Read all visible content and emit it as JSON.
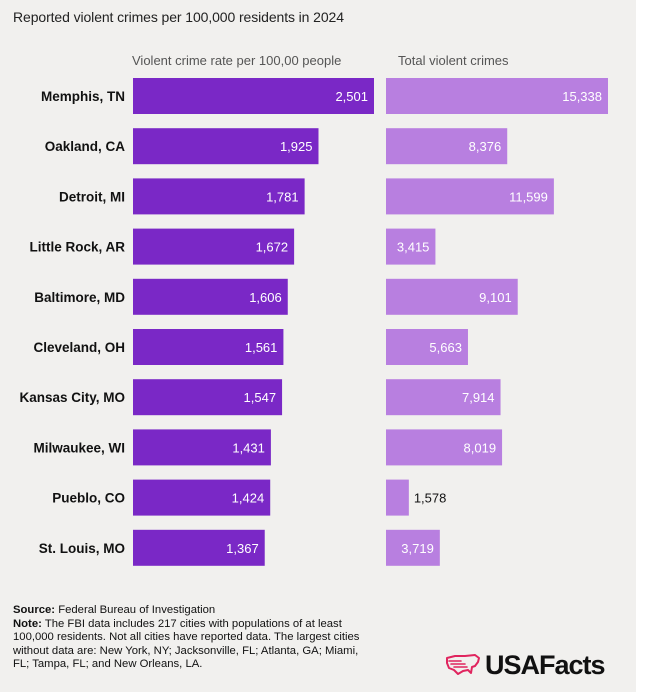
{
  "chart_data": {
    "type": "bar",
    "title": "Reported violent crimes per 100,000 residents in 2024",
    "categories": [
      "Memphis, TN",
      "Oakland, CA",
      "Detroit, MI",
      "Little Rock, AR",
      "Baltimore, MD",
      "Cleveland, OH",
      "Kansas City, MO",
      "Milwaukee, WI",
      "Pueblo, CO",
      "St. Louis, MO"
    ],
    "series": [
      {
        "name": "Violent crime rate per 100,00 people",
        "values": [
          2501,
          1925,
          1781,
          1672,
          1606,
          1561,
          1547,
          1431,
          1424,
          1367
        ],
        "labels": [
          "2,501",
          "1,925",
          "1,781",
          "1,672",
          "1,606",
          "1,561",
          "1,547",
          "1,431",
          "1,424",
          "1,367"
        ],
        "color": "#7a28c6"
      },
      {
        "name": "Total violent crimes",
        "values": [
          15338,
          8376,
          11599,
          3415,
          9101,
          5663,
          7914,
          8019,
          1578,
          3719
        ],
        "labels": [
          "15,338",
          "8,376",
          "11,599",
          "3,415",
          "9,101",
          "5,663",
          "7,914",
          "8,019",
          "1,578",
          "3,719"
        ],
        "color": "#b87fe0"
      }
    ]
  },
  "footer": {
    "source_label": "Source:",
    "source_text": "Federal Bureau of Investigation",
    "note_label": "Note:",
    "note_text": "The FBI data includes 217 cities with populations of at least 100,000 residents. Not all cities have reported data. The largest cities without data are: New York, NY; Jacksonville, FL; Atlanta, GA; Miami, FL; Tampa, FL; and New Orleans, LA."
  },
  "logo": {
    "text": "USAFacts",
    "icon": "usa-map-icon",
    "color": "#e0245e"
  }
}
